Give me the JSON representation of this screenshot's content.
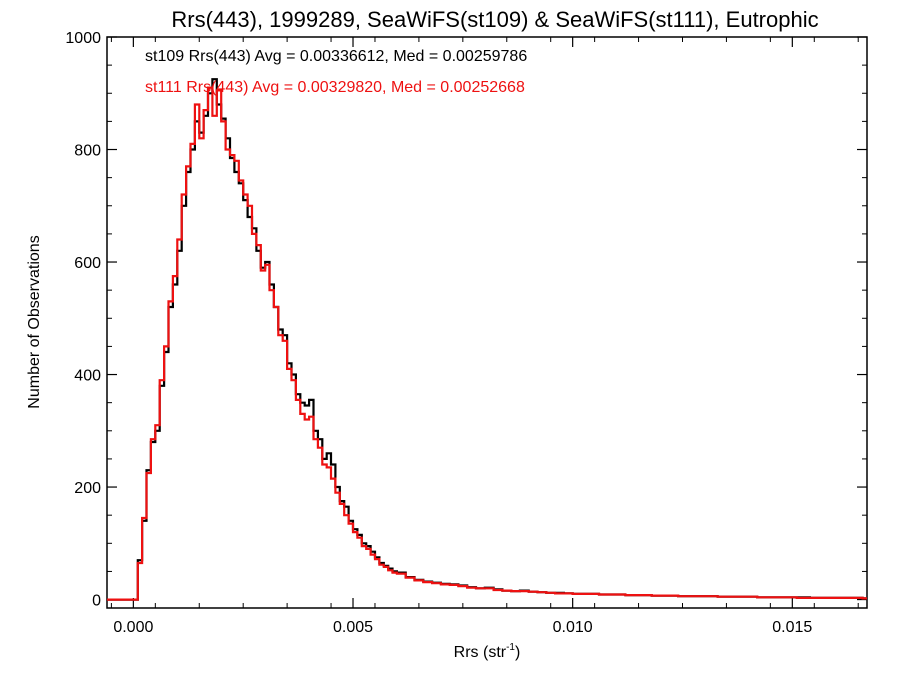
{
  "chart_data": {
    "type": "line",
    "title": "Rrs(443), 1999289, SeaWiFS(st109) & SeaWiFS(st111), Eutrophic",
    "xlabel_main": "Rrs (str",
    "xlabel_sup": "-1",
    "xlabel_close": ")",
    "ylabel": "Number of Observations",
    "xlim": [
      -0.0006,
      0.0167
    ],
    "ylim": [
      -15,
      1000
    ],
    "xticks": [
      "0.000",
      "0.005",
      "0.010",
      "0.015"
    ],
    "yticks": [
      "0",
      "200",
      "400",
      "600",
      "800",
      "1000"
    ],
    "grid": false,
    "legend_position": "top-left",
    "series": [
      {
        "name": "st109",
        "stats_text": "st109 Rrs(443) Avg = 0.00336612, Med = 0.00259786",
        "color": "#000000",
        "x": [
          -0.0006,
          0.0,
          0.0001,
          0.0002,
          0.0003,
          0.0004,
          0.0005,
          0.0006,
          0.0007,
          0.0008,
          0.0009,
          0.001,
          0.0011,
          0.0012,
          0.0013,
          0.0014,
          0.0015,
          0.0016,
          0.0017,
          0.0018,
          0.0019,
          0.002,
          0.0021,
          0.0022,
          0.0023,
          0.0024,
          0.0025,
          0.0026,
          0.0027,
          0.0028,
          0.0029,
          0.003,
          0.0031,
          0.0032,
          0.0033,
          0.0034,
          0.0035,
          0.0036,
          0.0037,
          0.0038,
          0.0039,
          0.004,
          0.0041,
          0.0042,
          0.0043,
          0.0044,
          0.0045,
          0.0046,
          0.0047,
          0.0048,
          0.0049,
          0.005,
          0.0051,
          0.0052,
          0.0053,
          0.0054,
          0.0055,
          0.0056,
          0.0057,
          0.0058,
          0.0059,
          0.006,
          0.0062,
          0.0064,
          0.0066,
          0.0068,
          0.007,
          0.0072,
          0.0074,
          0.0076,
          0.0078,
          0.008,
          0.0082,
          0.0084,
          0.0086,
          0.0088,
          0.009,
          0.0092,
          0.0094,
          0.0096,
          0.0098,
          0.01,
          0.0103,
          0.0106,
          0.0109,
          0.0112,
          0.0115,
          0.0118,
          0.0121,
          0.0124,
          0.0127,
          0.013,
          0.0133,
          0.0136,
          0.0139,
          0.0142,
          0.0145,
          0.0148,
          0.0151,
          0.0154,
          0.0157,
          0.016,
          0.0163,
          0.0166,
          0.0167
        ],
        "y": [
          0,
          0,
          70,
          140,
          230,
          280,
          300,
          380,
          440,
          520,
          560,
          620,
          700,
          760,
          800,
          850,
          830,
          860,
          900,
          925,
          880,
          855,
          820,
          785,
          760,
          740,
          710,
          680,
          660,
          620,
          590,
          600,
          560,
          520,
          480,
          470,
          420,
          400,
          365,
          350,
          345,
          355,
          300,
          285,
          250,
          260,
          240,
          200,
          175,
          165,
          140,
          125,
          115,
          100,
          95,
          85,
          75,
          65,
          60,
          55,
          50,
          48,
          40,
          35,
          32,
          30,
          28,
          27,
          25,
          22,
          20,
          21,
          18,
          16,
          15,
          16,
          14,
          13,
          12,
          12,
          11,
          10,
          10,
          9,
          9,
          8,
          8,
          7,
          7,
          6,
          6,
          6,
          5,
          5,
          5,
          4,
          4,
          4,
          4,
          3,
          3,
          3,
          3,
          2,
          2
        ]
      },
      {
        "name": "st111",
        "stats_text": "st111 Rrs(443) Avg = 0.00329820, Med = 0.00252668",
        "color": "#ee1111",
        "x": [
          -0.0006,
          0.0,
          0.0001,
          0.0002,
          0.0003,
          0.0004,
          0.0005,
          0.0006,
          0.0007,
          0.0008,
          0.0009,
          0.001,
          0.0011,
          0.0012,
          0.0013,
          0.0014,
          0.0015,
          0.0016,
          0.0017,
          0.0018,
          0.0019,
          0.002,
          0.0021,
          0.0022,
          0.0023,
          0.0024,
          0.0025,
          0.0026,
          0.0027,
          0.0028,
          0.0029,
          0.003,
          0.0031,
          0.0032,
          0.0033,
          0.0034,
          0.0035,
          0.0036,
          0.0037,
          0.0038,
          0.0039,
          0.004,
          0.0041,
          0.0042,
          0.0043,
          0.0044,
          0.0045,
          0.0046,
          0.0047,
          0.0048,
          0.0049,
          0.005,
          0.0051,
          0.0052,
          0.0053,
          0.0054,
          0.0055,
          0.0056,
          0.0057,
          0.0058,
          0.0059,
          0.006,
          0.0062,
          0.0064,
          0.0066,
          0.0068,
          0.007,
          0.0072,
          0.0074,
          0.0076,
          0.0078,
          0.008,
          0.0082,
          0.0084,
          0.0086,
          0.0088,
          0.009,
          0.0092,
          0.0094,
          0.0096,
          0.0098,
          0.01,
          0.0103,
          0.0106,
          0.0109,
          0.0112,
          0.0115,
          0.0118,
          0.0121,
          0.0124,
          0.0127,
          0.013,
          0.0133,
          0.0136,
          0.0139,
          0.0142,
          0.0145,
          0.0148,
          0.0151,
          0.0154,
          0.0157,
          0.016,
          0.0163,
          0.0166,
          0.0167
        ],
        "y": [
          0,
          0,
          65,
          145,
          225,
          285,
          310,
          390,
          450,
          530,
          575,
          640,
          720,
          770,
          810,
          880,
          820,
          870,
          910,
          860,
          905,
          850,
          800,
          790,
          780,
          745,
          720,
          700,
          650,
          630,
          585,
          595,
          550,
          520,
          470,
          460,
          410,
          390,
          355,
          330,
          320,
          325,
          285,
          270,
          240,
          235,
          215,
          190,
          170,
          150,
          135,
          120,
          110,
          95,
          90,
          80,
          72,
          62,
          58,
          52,
          48,
          46,
          39,
          34,
          31,
          29,
          27,
          26,
          24,
          21,
          20,
          20,
          17,
          16,
          15,
          15,
          14,
          13,
          12,
          11,
          11,
          10,
          10,
          9,
          9,
          8,
          8,
          7,
          7,
          6,
          6,
          6,
          5,
          5,
          5,
          4,
          4,
          4,
          3,
          3,
          3,
          3,
          3,
          2,
          2
        ]
      }
    ]
  }
}
